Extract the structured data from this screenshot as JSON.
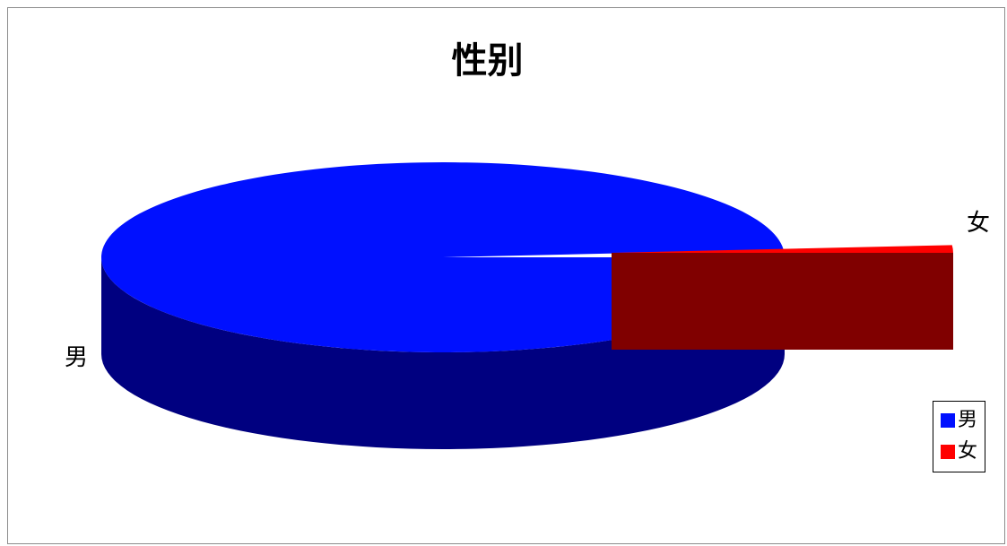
{
  "chart_data": {
    "type": "pie",
    "title": "性别",
    "categories": [
      "男",
      "女"
    ],
    "values": [
      98.7,
      1.3
    ],
    "colors": {
      "男": {
        "top": "#0010ff",
        "side": "#000080"
      },
      "女": {
        "top": "#ff0000",
        "side": "#800000"
      }
    },
    "style": "3d-exploded",
    "legend": {
      "position": "right",
      "entries": [
        "男",
        "女"
      ]
    }
  }
}
